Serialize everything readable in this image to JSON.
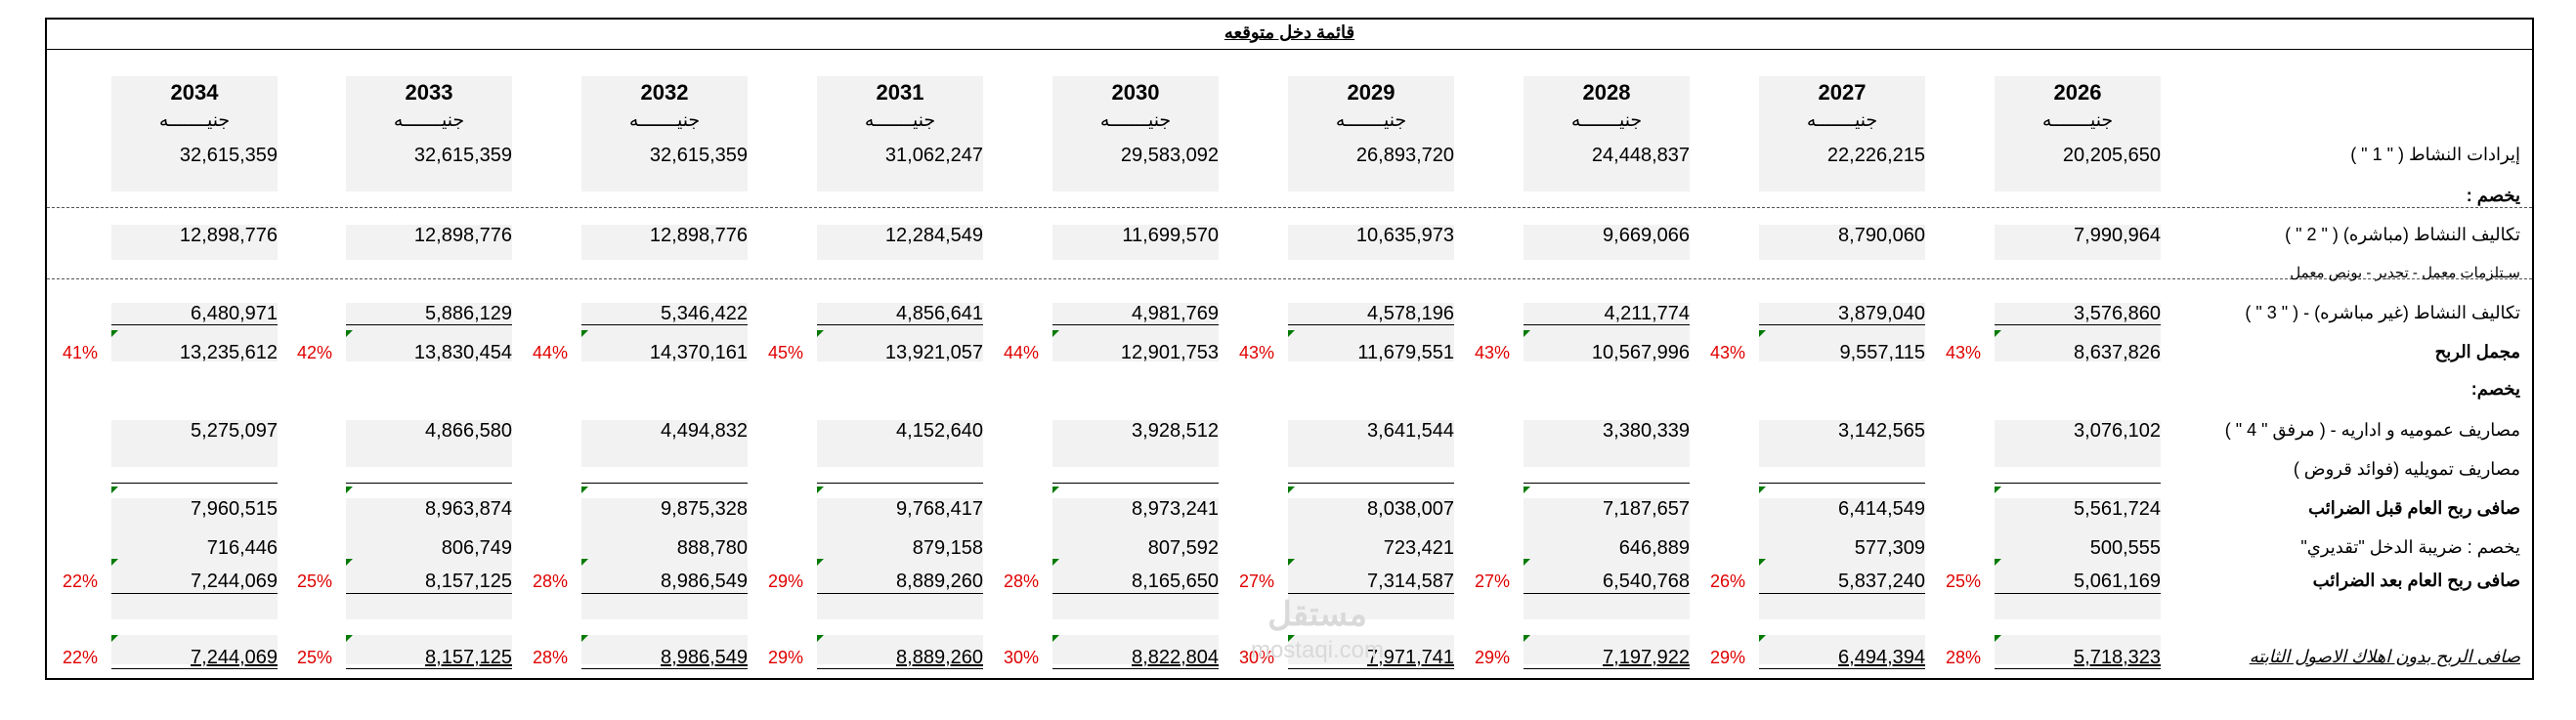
{
  "title": "قائمة دخل متوقعه",
  "currency": "جنيـــــــه",
  "years": [
    "2034",
    "2033",
    "2032",
    "2031",
    "2030",
    "2029",
    "2028",
    "2027",
    "2026"
  ],
  "labels": {
    "revenue": "إيرادات النشاط ( \" 1 \" )",
    "less1": "يخصم :",
    "direct_costs": "تكاليف النشاط (مباشره) ( \" 2 \" )",
    "direct_note": "سـتلزمات معمل - تحدير - بونص معمل",
    "indirect_costs": "تكاليف النشاط (غير مباشره) - ( \" 3 \" )",
    "gross_profit": "مجمل الربح",
    "less2": "يخصم:",
    "admin": "مصاريف عموميه و اداريه - ( مرفق \" 4 \" )",
    "finance": "مصاريف تمويليه (فوائد قروض )",
    "pre_tax": "صافى ربح العام قبل الضرائب",
    "tax": "يخصم : ضريبة الدخل \"تقديري\"",
    "after_tax": "صافى ربح العام بعد الضرائب",
    "net_no_dep": "صافى الربح بدون اهلاك الاصول الثابته"
  },
  "rows": {
    "revenue": [
      "32,615,359",
      "32,615,359",
      "32,615,359",
      "31,062,247",
      "29,583,092",
      "26,893,720",
      "24,448,837",
      "22,226,215",
      "20,205,650"
    ],
    "direct_costs": [
      "12,898,776",
      "12,898,776",
      "12,898,776",
      "12,284,549",
      "11,699,570",
      "10,635,973",
      "9,669,066",
      "8,790,060",
      "7,990,964"
    ],
    "indirect_costs": [
      "6,480,971",
      "5,886,129",
      "5,346,422",
      "4,856,641",
      "4,981,769",
      "4,578,196",
      "4,211,774",
      "3,879,040",
      "3,576,860"
    ],
    "gross_profit": [
      "13,235,612",
      "13,830,454",
      "14,370,161",
      "13,921,057",
      "12,901,753",
      "11,679,551",
      "10,567,996",
      "9,557,115",
      "8,637,826"
    ],
    "admin": [
      "5,275,097",
      "4,866,580",
      "4,494,832",
      "4,152,640",
      "3,928,512",
      "3,641,544",
      "3,380,339",
      "3,142,565",
      "3,076,102"
    ],
    "pre_tax": [
      "7,960,515",
      "8,963,874",
      "9,875,328",
      "9,768,417",
      "8,973,241",
      "8,038,007",
      "7,187,657",
      "6,414,549",
      "5,561,724"
    ],
    "tax": [
      "716,446",
      "806,749",
      "888,780",
      "879,158",
      "807,592",
      "723,421",
      "646,889",
      "577,309",
      "500,555"
    ],
    "after_tax": [
      "7,244,069",
      "8,157,125",
      "8,986,549",
      "8,889,260",
      "8,165,650",
      "7,314,587",
      "6,540,768",
      "5,837,240",
      "5,061,169"
    ],
    "net_no_dep": [
      "7,244,069",
      "8,157,125",
      "8,986,549",
      "8,889,260",
      "8,822,804",
      "7,971,741",
      "7,197,922",
      "6,494,394",
      "5,718,323"
    ]
  },
  "pct": {
    "gross_profit": [
      "41%",
      "42%",
      "44%",
      "45%",
      "44%",
      "43%",
      "43%",
      "43%",
      "43%"
    ],
    "after_tax": [
      "22%",
      "25%",
      "28%",
      "29%",
      "28%",
      "27%",
      "27%",
      "26%",
      "25%"
    ],
    "net_no_dep": [
      "22%",
      "25%",
      "28%",
      "29%",
      "30%",
      "30%",
      "29%",
      "29%",
      "28%"
    ]
  },
  "watermark": "مستقل",
  "watermark_url": "mostaqi.com",
  "colors": {
    "pct": "#e00000",
    "shade": "#f2f2f2",
    "tick": "#007a00"
  }
}
